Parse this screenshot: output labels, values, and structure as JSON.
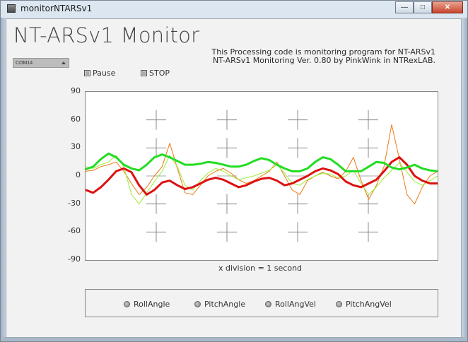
{
  "window": {
    "title": "monitorNTARSv1",
    "minimize_label": "—",
    "maximize_label": "□",
    "close_label": "✕"
  },
  "app": {
    "title": "NT-ARSv1 Monitor",
    "info_line1": "This Processing code is monitoring program for NT-ARSv1",
    "info_line2": "NT-ARSv1 Monitoring Ver. 0.80 by PinkWink in NTRexLAB."
  },
  "port": {
    "selected": "COM14"
  },
  "controls": {
    "pause_label": "Pause",
    "stop_label": "STOP"
  },
  "chart_data": {
    "type": "line",
    "xlabel": "x division = 1 second",
    "ylim": [
      -90,
      90
    ],
    "yticks": [
      90,
      60,
      30,
      0,
      -30,
      -60,
      -90
    ],
    "grid": "crosshair markers",
    "series": [
      {
        "name": "RollAngle",
        "color": "#22dd22",
        "values": [
          7,
          10,
          18,
          24,
          20,
          12,
          8,
          6,
          12,
          20,
          23,
          20,
          16,
          12,
          12,
          13,
          15,
          14,
          12,
          10,
          10,
          12,
          16,
          19,
          17,
          12,
          8,
          5,
          5,
          8,
          15,
          20,
          18,
          12,
          5,
          5,
          5,
          10,
          15,
          14,
          9,
          7,
          9,
          12,
          8,
          6,
          5
        ]
      },
      {
        "name": "PitchAngle",
        "color": "#dd1111",
        "values": [
          -15,
          -18,
          -12,
          -4,
          5,
          8,
          4,
          -10,
          -20,
          -15,
          -7,
          -5,
          -10,
          -14,
          -12,
          -8,
          -4,
          -2,
          -4,
          -8,
          -12,
          -10,
          -6,
          -3,
          -2,
          -5,
          -10,
          -8,
          -4,
          0,
          5,
          8,
          6,
          2,
          -6,
          -10,
          -12,
          -8,
          -4,
          5,
          15,
          20,
          12,
          0,
          -5,
          -8,
          -8
        ]
      },
      {
        "name": "RollAngVel",
        "color": "#99ee33",
        "values": [
          10,
          8,
          12,
          15,
          22,
          10,
          -20,
          -30,
          -18,
          -6,
          5,
          22,
          10,
          -10,
          -15,
          -5,
          3,
          8,
          5,
          0,
          -4,
          -2,
          0,
          3,
          6,
          12,
          3,
          -8,
          -10,
          -4,
          0,
          3,
          2,
          -2,
          0,
          6,
          -8,
          -20,
          -12,
          -2,
          6,
          14,
          4,
          -6,
          -10,
          -5,
          0
        ]
      },
      {
        "name": "PitchAngVel",
        "color": "#ee7711",
        "values": [
          5,
          6,
          10,
          12,
          15,
          5,
          -8,
          -20,
          -12,
          0,
          10,
          35,
          8,
          -18,
          -20,
          -10,
          0,
          5,
          8,
          3,
          -4,
          -8,
          -5,
          0,
          5,
          15,
          0,
          -15,
          -20,
          -5,
          0,
          4,
          0,
          -3,
          5,
          20,
          -5,
          -25,
          -10,
          10,
          55,
          18,
          -20,
          -30,
          -12,
          0,
          5
        ]
      }
    ]
  },
  "legend": {
    "roll_angle": "RollAngle",
    "pitch_angle": "PitchAngle",
    "roll_ang_vel": "RollAngVel",
    "pitch_ang_vel": "PitchAngVel"
  }
}
